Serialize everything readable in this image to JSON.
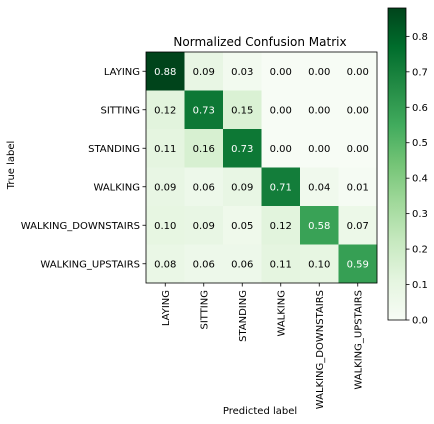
{
  "chart_data": {
    "type": "heatmap",
    "title": "Normalized Confusion Matrix",
    "xlabel": "Predicted label",
    "ylabel": "True label",
    "x_categories": [
      "LAYING",
      "SITTING",
      "STANDING",
      "WALKING",
      "WALKING_DOWNSTAIRS",
      "WALKING_UPSTAIRS"
    ],
    "y_categories": [
      "LAYING",
      "SITTING",
      "STANDING",
      "WALKING",
      "WALKING_DOWNSTAIRS",
      "WALKING_UPSTAIRS"
    ],
    "values": [
      [
        0.88,
        0.09,
        0.03,
        0.0,
        0.0,
        0.0
      ],
      [
        0.12,
        0.73,
        0.15,
        0.0,
        0.0,
        0.0
      ],
      [
        0.11,
        0.16,
        0.73,
        0.0,
        0.0,
        0.0
      ],
      [
        0.09,
        0.06,
        0.09,
        0.71,
        0.04,
        0.01
      ],
      [
        0.1,
        0.09,
        0.05,
        0.12,
        0.58,
        0.07
      ],
      [
        0.08,
        0.06,
        0.06,
        0.11,
        0.1,
        0.59
      ]
    ],
    "value_labels": [
      [
        "0.88",
        "0.09",
        "0.03",
        "0.00",
        "0.00",
        "0.00"
      ],
      [
        "0.12",
        "0.73",
        "0.15",
        "0.00",
        "0.00",
        "0.00"
      ],
      [
        "0.11",
        "0.16",
        "0.73",
        "0.00",
        "0.00",
        "0.00"
      ],
      [
        "0.09",
        "0.06",
        "0.09",
        "0.71",
        "0.04",
        "0.01"
      ],
      [
        "0.10",
        "0.09",
        "0.05",
        "0.12",
        "0.58",
        "0.07"
      ],
      [
        "0.08",
        "0.06",
        "0.06",
        "0.11",
        "0.10",
        "0.59"
      ]
    ],
    "colormap": "Greens",
    "colorbar": {
      "range": [
        0.0,
        0.88
      ],
      "ticks": [
        0.0,
        0.1,
        0.2,
        0.3,
        0.4,
        0.5,
        0.6,
        0.7,
        0.8
      ],
      "tick_labels": [
        "0.0",
        "0.1",
        "0.2",
        "0.3",
        "0.4",
        "0.5",
        "0.6",
        "0.7",
        "0.8"
      ]
    },
    "grid": false
  }
}
